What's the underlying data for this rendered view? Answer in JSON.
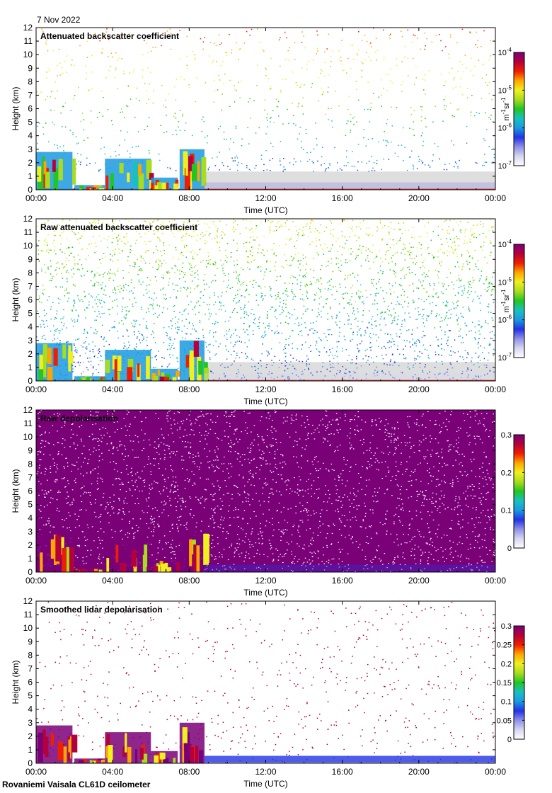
{
  "date": "7 Nov 2022",
  "footer": "Rovaniemi Vaisala CL61D ceilometer",
  "colors": {
    "axis": "#000000",
    "background_gray": "#dedede",
    "colormap": [
      "#ffffff",
      "#d6d6f0",
      "#8f8fe6",
      "#2233e6",
      "#1a9ae0",
      "#19c0c0",
      "#22c622",
      "#a8dc1e",
      "#f0f01e",
      "#ffa500",
      "#f01e00",
      "#b4003c",
      "#7a0078"
    ]
  },
  "chart_data": [
    {
      "type": "heatmap",
      "title": "Attenuated backscatter coefficient",
      "xlabel": "Time (UTC)",
      "ylabel": "Height (km)",
      "x_ticks": [
        "00:00",
        "04:00",
        "08:00",
        "12:00",
        "16:00",
        "20:00",
        "00:00"
      ],
      "x_range_hours": [
        0,
        24
      ],
      "y_ticks": [
        0,
        1,
        2,
        3,
        4,
        5,
        6,
        7,
        8,
        9,
        10,
        11,
        12
      ],
      "ylim_km": [
        0,
        12
      ],
      "colorbar": {
        "scale": "log",
        "range": [
          1e-07,
          0.0001
        ],
        "ticks": [
          {
            "value": 0.0001,
            "base": "10",
            "exp": "-4"
          },
          {
            "value": 1e-05,
            "base": "10",
            "exp": "-5"
          },
          {
            "value": 1e-06,
            "base": "10",
            "exp": "-6"
          },
          {
            "value": 1e-07,
            "base": "10",
            "exp": "-7"
          }
        ],
        "unit": {
          "parts": [
            {
              "t": "m",
              "exp": "-1"
            },
            {
              "t": " sr",
              "exp": "-1"
            }
          ]
        }
      },
      "features": "Low cloud up to ~2.8 km from 00:00 to ~09:00 UTC; clean aerosol layer below ~1.5 km afterwards; sparse noise aloft"
    },
    {
      "type": "heatmap",
      "title": "Raw attenuated backscatter coefficient",
      "xlabel": "Time (UTC)",
      "ylabel": "Height (km)",
      "x_ticks": [
        "00:00",
        "04:00",
        "08:00",
        "12:00",
        "16:00",
        "20:00",
        "00:00"
      ],
      "x_range_hours": [
        0,
        24
      ],
      "y_ticks": [
        0,
        1,
        2,
        3,
        4,
        5,
        6,
        7,
        8,
        9,
        10,
        11,
        12
      ],
      "ylim_km": [
        0,
        12
      ],
      "colorbar": {
        "scale": "log",
        "range": [
          1e-07,
          0.0001
        ],
        "ticks": [
          {
            "value": 0.0001,
            "base": "10",
            "exp": "-4"
          },
          {
            "value": 1e-05,
            "base": "10",
            "exp": "-5"
          },
          {
            "value": 1e-06,
            "base": "10",
            "exp": "-6"
          },
          {
            "value": 1e-07,
            "base": "10",
            "exp": "-7"
          }
        ],
        "unit": {
          "parts": [
            {
              "t": "m",
              "exp": "-1"
            },
            {
              "t": " sr",
              "exp": "-1"
            }
          ]
        }
      }
    },
    {
      "type": "heatmap",
      "title": "Raw depolarisation",
      "xlabel": "Time (UTC)",
      "ylabel": "Height (km)",
      "x_ticks": [
        "00:00",
        "04:00",
        "08:00",
        "12:00",
        "16:00",
        "20:00",
        "00:00"
      ],
      "x_range_hours": [
        0,
        24
      ],
      "y_ticks": [
        0,
        1,
        2,
        3,
        4,
        5,
        6,
        7,
        8,
        9,
        10,
        11,
        12
      ],
      "ylim_km": [
        0,
        12
      ],
      "colorbar": {
        "scale": "linear",
        "range": [
          0,
          0.3
        ],
        "ticks": [
          {
            "value": 0.3,
            "label": "0.3"
          },
          {
            "value": 0.2,
            "label": "0.2"
          },
          {
            "value": 0.1,
            "label": "0.1"
          },
          {
            "value": 0,
            "label": "0"
          }
        ]
      }
    },
    {
      "type": "heatmap",
      "title": "Smoothed lidar depolarisation",
      "xlabel": "Time (UTC)",
      "ylabel": "Height (km)",
      "x_ticks": [
        "00:00",
        "04:00",
        "08:00",
        "12:00",
        "16:00",
        "20:00",
        "00:00"
      ],
      "x_range_hours": [
        0,
        24
      ],
      "y_ticks": [
        0,
        1,
        2,
        3,
        4,
        5,
        6,
        7,
        8,
        9,
        10,
        11,
        12
      ],
      "ylim_km": [
        0,
        12
      ],
      "colorbar": {
        "scale": "linear",
        "range": [
          0,
          0.3
        ],
        "ticks": [
          {
            "value": 0.3,
            "label": "0.3"
          },
          {
            "value": 0.25,
            "label": "0.25"
          },
          {
            "value": 0.2,
            "label": "0.2"
          },
          {
            "value": 0.15,
            "label": "0.15"
          },
          {
            "value": 0.1,
            "label": "0.1"
          },
          {
            "value": 0.05,
            "label": "0.05"
          },
          {
            "value": 0,
            "label": "0"
          }
        ]
      }
    }
  ]
}
